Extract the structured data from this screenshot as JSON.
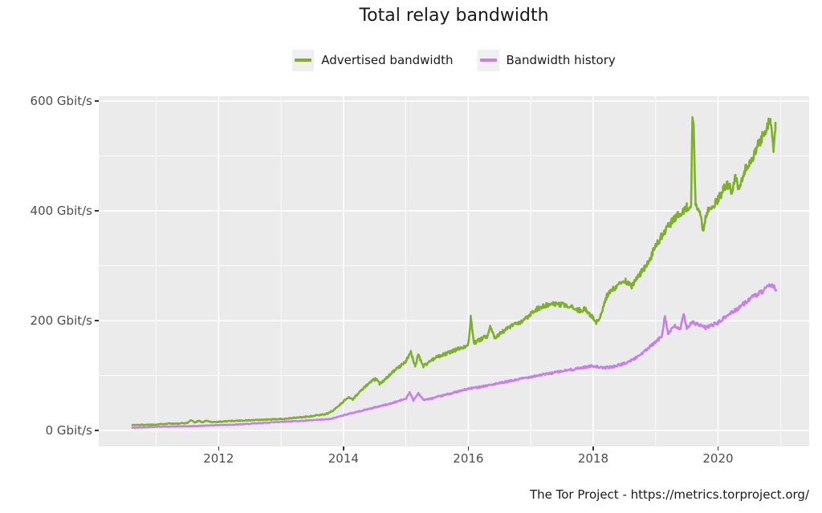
{
  "page": {
    "title": "Total relay bandwidth",
    "footer": "The Tor Project - https://metrics.torproject.org/"
  },
  "legend": {
    "items": [
      {
        "label": "Advertised bandwidth",
        "color": "#7DB228"
      },
      {
        "label": "Bandwidth history",
        "color": "#C77DF3"
      }
    ]
  },
  "chart_data": {
    "type": "line",
    "title": "Total relay bandwidth",
    "xlabel": "",
    "ylabel": "",
    "unit": "Gbit/s",
    "grid": true,
    "legend_position": "top-center",
    "panel_bg": "#EBEBEB",
    "grid_color": "#FFFFFF",
    "x_axis": {
      "range": [
        2010.08,
        2021.46
      ],
      "major_ticks": [
        2012,
        2014,
        2016,
        2018,
        2020
      ],
      "minor_ticks": [
        2011,
        2013,
        2015,
        2017,
        2019,
        2021
      ],
      "tick_labels": [
        "2012",
        "2014",
        "2016",
        "2018",
        "2020"
      ]
    },
    "y_axis": {
      "range": [
        -29,
        609
      ],
      "major_ticks": [
        0,
        200,
        400,
        600
      ],
      "minor_ticks": [
        100,
        300,
        500
      ],
      "tick_labels": [
        "0 Gbit/s",
        "200 Gbit/s",
        "400 Gbit/s",
        "600 Gbit/s"
      ]
    },
    "series": [
      {
        "name": "Advertised bandwidth",
        "color": "#7DB228",
        "noise_base": 0.5,
        "noise_rel": 0.018,
        "seed": 1337,
        "keypoints": [
          [
            2010.62,
            10
          ],
          [
            2010.8,
            10.5
          ],
          [
            2011.0,
            11
          ],
          [
            2011.2,
            13
          ],
          [
            2011.35,
            12.5
          ],
          [
            2011.5,
            14
          ],
          [
            2011.56,
            19
          ],
          [
            2011.62,
            14.5
          ],
          [
            2011.68,
            18
          ],
          [
            2011.74,
            15
          ],
          [
            2011.8,
            18
          ],
          [
            2011.88,
            15.5
          ],
          [
            2012.0,
            16
          ],
          [
            2012.2,
            17.5
          ],
          [
            2012.45,
            18.5
          ],
          [
            2012.7,
            19.5
          ],
          [
            2013.0,
            21
          ],
          [
            2013.2,
            23
          ],
          [
            2013.4,
            25
          ],
          [
            2013.6,
            28
          ],
          [
            2013.75,
            31
          ],
          [
            2013.85,
            38
          ],
          [
            2013.95,
            48
          ],
          [
            2014.0,
            53
          ],
          [
            2014.08,
            61
          ],
          [
            2014.15,
            57
          ],
          [
            2014.3,
            75
          ],
          [
            2014.45,
            90
          ],
          [
            2014.52,
            94
          ],
          [
            2014.58,
            85
          ],
          [
            2014.65,
            92
          ],
          [
            2014.8,
            108
          ],
          [
            2014.9,
            116
          ],
          [
            2015.0,
            127
          ],
          [
            2015.08,
            142
          ],
          [
            2015.15,
            118
          ],
          [
            2015.2,
            138
          ],
          [
            2015.28,
            117
          ],
          [
            2015.38,
            126
          ],
          [
            2015.5,
            134
          ],
          [
            2015.65,
            140
          ],
          [
            2015.8,
            147
          ],
          [
            2015.95,
            154
          ],
          [
            2016.0,
            157
          ],
          [
            2016.04,
            205
          ],
          [
            2016.09,
            160
          ],
          [
            2016.2,
            166
          ],
          [
            2016.3,
            172
          ],
          [
            2016.35,
            190
          ],
          [
            2016.42,
            170
          ],
          [
            2016.55,
            180
          ],
          [
            2016.7,
            191
          ],
          [
            2016.85,
            197
          ],
          [
            2017.0,
            213
          ],
          [
            2017.1,
            222
          ],
          [
            2017.25,
            228
          ],
          [
            2017.4,
            230
          ],
          [
            2017.55,
            228
          ],
          [
            2017.65,
            224
          ],
          [
            2017.78,
            219
          ],
          [
            2017.88,
            221
          ],
          [
            2017.97,
            209
          ],
          [
            2018.05,
            196
          ],
          [
            2018.12,
            208
          ],
          [
            2018.22,
            245
          ],
          [
            2018.32,
            258
          ],
          [
            2018.42,
            268
          ],
          [
            2018.52,
            272
          ],
          [
            2018.62,
            262
          ],
          [
            2018.72,
            280
          ],
          [
            2018.82,
            296
          ],
          [
            2018.92,
            315
          ],
          [
            2019.0,
            336
          ],
          [
            2019.1,
            355
          ],
          [
            2019.2,
            372
          ],
          [
            2019.3,
            385
          ],
          [
            2019.4,
            397
          ],
          [
            2019.5,
            407
          ],
          [
            2019.57,
            412
          ],
          [
            2019.59,
            578
          ],
          [
            2019.61,
            565
          ],
          [
            2019.64,
            412
          ],
          [
            2019.7,
            404
          ],
          [
            2019.76,
            366
          ],
          [
            2019.82,
            395
          ],
          [
            2019.9,
            408
          ],
          [
            2020.0,
            420
          ],
          [
            2020.08,
            438
          ],
          [
            2020.15,
            450
          ],
          [
            2020.22,
            438
          ],
          [
            2020.28,
            461
          ],
          [
            2020.33,
            436
          ],
          [
            2020.4,
            466
          ],
          [
            2020.5,
            487
          ],
          [
            2020.6,
            509
          ],
          [
            2020.68,
            528
          ],
          [
            2020.75,
            545
          ],
          [
            2020.8,
            559
          ],
          [
            2020.84,
            565
          ],
          [
            2020.87,
            537
          ],
          [
            2020.89,
            513
          ],
          [
            2020.92,
            552
          ]
        ]
      },
      {
        "name": "Bandwidth history",
        "color": "#C77DF3",
        "noise_base": 0.4,
        "noise_rel": 0.015,
        "seed": 42,
        "keypoints": [
          [
            2010.62,
            5
          ],
          [
            2010.8,
            6
          ],
          [
            2011.0,
            7
          ],
          [
            2011.3,
            7.5
          ],
          [
            2011.6,
            8
          ],
          [
            2012.0,
            10
          ],
          [
            2012.3,
            11
          ],
          [
            2012.6,
            13
          ],
          [
            2013.0,
            16
          ],
          [
            2013.4,
            18
          ],
          [
            2013.8,
            21
          ],
          [
            2014.0,
            28
          ],
          [
            2014.25,
            35
          ],
          [
            2014.5,
            42
          ],
          [
            2014.75,
            49
          ],
          [
            2015.0,
            58
          ],
          [
            2015.06,
            70
          ],
          [
            2015.12,
            55
          ],
          [
            2015.2,
            68
          ],
          [
            2015.28,
            56
          ],
          [
            2015.4,
            58
          ],
          [
            2015.5,
            61
          ],
          [
            2015.7,
            67
          ],
          [
            2015.9,
            73
          ],
          [
            2016.0,
            76
          ],
          [
            2016.25,
            81
          ],
          [
            2016.5,
            86
          ],
          [
            2016.75,
            92
          ],
          [
            2017.0,
            98
          ],
          [
            2017.25,
            103
          ],
          [
            2017.5,
            108
          ],
          [
            2017.75,
            113
          ],
          [
            2018.0,
            118
          ],
          [
            2018.15,
            114
          ],
          [
            2018.3,
            116
          ],
          [
            2018.5,
            122
          ],
          [
            2018.65,
            130
          ],
          [
            2018.8,
            142
          ],
          [
            2019.0,
            161
          ],
          [
            2019.1,
            172
          ],
          [
            2019.15,
            210
          ],
          [
            2019.2,
            176
          ],
          [
            2019.3,
            190
          ],
          [
            2019.4,
            185
          ],
          [
            2019.45,
            212
          ],
          [
            2019.5,
            188
          ],
          [
            2019.6,
            197
          ],
          [
            2019.7,
            192
          ],
          [
            2019.8,
            187
          ],
          [
            2019.9,
            192
          ],
          [
            2020.0,
            196
          ],
          [
            2020.1,
            205
          ],
          [
            2020.2,
            214
          ],
          [
            2020.3,
            221
          ],
          [
            2020.4,
            230
          ],
          [
            2020.5,
            239
          ],
          [
            2020.6,
            246
          ],
          [
            2020.7,
            252
          ],
          [
            2020.8,
            261
          ],
          [
            2020.85,
            266
          ],
          [
            2020.9,
            262
          ],
          [
            2020.93,
            258
          ]
        ]
      }
    ]
  }
}
